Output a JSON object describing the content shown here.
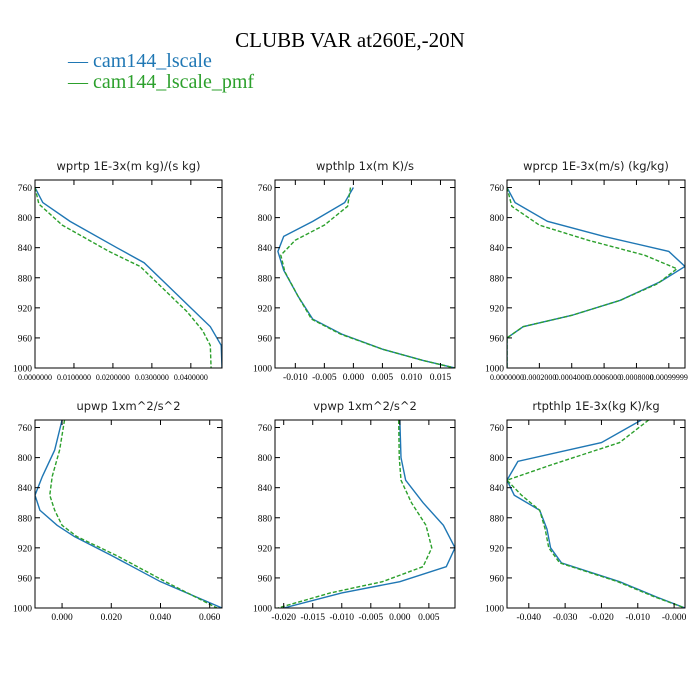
{
  "page": {
    "title": "CLUBB VAR at260E,-20N",
    "legend": [
      {
        "label": "— cam144_lscale",
        "color": "#1f77b4"
      },
      {
        "label": "— cam144_lscale_pmf",
        "color": "#2ca02c"
      }
    ]
  },
  "chart_data": [
    {
      "type": "line",
      "title": "wprtp 1E-3x(m kg)/(s kg)",
      "xlim": [
        0.0,
        0.048
      ],
      "ylim": [
        1000,
        750
      ],
      "xtick_values": [
        0.0,
        0.01,
        0.02,
        0.03,
        0.04
      ],
      "xtick_labels": [
        "0.0000000",
        "0.0100000",
        "0.0200000",
        "0.0300000",
        "0.0400000"
      ],
      "yticks": [
        760,
        800,
        840,
        880,
        920,
        960,
        1000
      ],
      "series": [
        {
          "name": "cam144_lscale",
          "color": "#1f77b4",
          "dashed": false,
          "points": [
            [
              0.0,
              760
            ],
            [
              0.002,
              780
            ],
            [
              0.009,
              805
            ],
            [
              0.021,
              840
            ],
            [
              0.028,
              860
            ],
            [
              0.034,
              890
            ],
            [
              0.04,
              920
            ],
            [
              0.045,
              945
            ],
            [
              0.0478,
              970
            ],
            [
              0.048,
              1000
            ]
          ]
        },
        {
          "name": "cam144_lscale_pmf",
          "color": "#2ca02c",
          "dashed": true,
          "points": [
            [
              0.0,
              760
            ],
            [
              0.001,
              782
            ],
            [
              0.007,
              810
            ],
            [
              0.019,
              845
            ],
            [
              0.027,
              865
            ],
            [
              0.033,
              895
            ],
            [
              0.039,
              925
            ],
            [
              0.043,
              950
            ],
            [
              0.045,
              970
            ],
            [
              0.0452,
              1000
            ]
          ]
        }
      ]
    },
    {
      "type": "line",
      "title": "wpthlp 1x(m K)/s",
      "xlim": [
        -0.0135,
        0.0175
      ],
      "ylim": [
        1000,
        750
      ],
      "xtick_values": [
        -0.01,
        -0.005,
        0.0,
        0.005,
        0.01,
        0.015
      ],
      "xtick_labels": [
        "-0.010",
        "-0.005",
        "0.000",
        "0.005",
        "0.010",
        "0.015"
      ],
      "yticks": [
        760,
        800,
        840,
        880,
        920,
        960,
        1000
      ],
      "series": [
        {
          "name": "cam144_lscale",
          "color": "#1f77b4",
          "dashed": false,
          "points": [
            [
              0.0,
              760
            ],
            [
              -0.0015,
              780
            ],
            [
              -0.007,
              805
            ],
            [
              -0.012,
              825
            ],
            [
              -0.013,
              845
            ],
            [
              -0.012,
              870
            ],
            [
              -0.0095,
              905
            ],
            [
              -0.007,
              935
            ],
            [
              -0.002,
              955
            ],
            [
              0.005,
              975
            ],
            [
              0.012,
              990
            ],
            [
              0.0175,
              1000
            ]
          ]
        },
        {
          "name": "cam144_lscale_pmf",
          "color": "#2ca02c",
          "dashed": true,
          "points": [
            [
              -0.0005,
              760
            ],
            [
              -0.001,
              785
            ],
            [
              -0.005,
              810
            ],
            [
              -0.01,
              830
            ],
            [
              -0.0125,
              850
            ],
            [
              -0.0118,
              872
            ],
            [
              -0.0095,
              905
            ],
            [
              -0.0072,
              935
            ],
            [
              -0.0022,
              955
            ],
            [
              0.005,
              975
            ],
            [
              0.012,
              990
            ],
            [
              0.0175,
              1000
            ]
          ]
        }
      ]
    },
    {
      "type": "line",
      "title": "wprcp 1E-3x(m/s) (kg/kg)",
      "xlim": [
        0.0,
        0.0011
      ],
      "ylim": [
        1000,
        750
      ],
      "xtick_values": [
        0.0,
        0.0002,
        0.0004,
        0.0006,
        0.0008,
        0.001
      ],
      "xtick_labels": [
        "0.0000000",
        "0.0002000",
        "0.0004000",
        "0.0006000",
        "0.0008000",
        "0.00099999"
      ],
      "yticks": [
        760,
        800,
        840,
        880,
        920,
        960,
        1000
      ],
      "series": [
        {
          "name": "cam144_lscale",
          "color": "#1f77b4",
          "dashed": false,
          "points": [
            [
              0.0,
              760
            ],
            [
              5e-05,
              780
            ],
            [
              0.00025,
              805
            ],
            [
              0.0006,
              825
            ],
            [
              0.001,
              845
            ],
            [
              0.0011,
              865
            ],
            [
              0.00095,
              885
            ],
            [
              0.0007,
              910
            ],
            [
              0.0004,
              930
            ],
            [
              0.0001,
              945
            ],
            [
              0.0,
              960
            ],
            [
              0.0,
              1000
            ]
          ]
        },
        {
          "name": "cam144_lscale_pmf",
          "color": "#2ca02c",
          "dashed": true,
          "points": [
            [
              0.0,
              760
            ],
            [
              3e-05,
              785
            ],
            [
              0.0002,
              810
            ],
            [
              0.0005,
              830
            ],
            [
              0.00085,
              850
            ],
            [
              0.00105,
              868
            ],
            [
              0.00093,
              888
            ],
            [
              0.0007,
              910
            ],
            [
              0.0004,
              930
            ],
            [
              0.0001,
              945
            ],
            [
              0.0,
              960
            ],
            [
              0.0,
              1000
            ]
          ]
        }
      ]
    },
    {
      "type": "line",
      "title": "upwp 1xm^2/s^2",
      "xlim": [
        -0.011,
        0.065
      ],
      "ylim": [
        1000,
        750
      ],
      "xtick_values": [
        0.0,
        0.02,
        0.04,
        0.06
      ],
      "xtick_labels": [
        "0.000",
        "0.020",
        "0.040",
        "0.060"
      ],
      "yticks": [
        760,
        800,
        840,
        880,
        920,
        960,
        1000
      ],
      "series": [
        {
          "name": "cam144_lscale",
          "color": "#1f77b4",
          "dashed": false,
          "points": [
            [
              0.0,
              750
            ],
            [
              -0.003,
              790
            ],
            [
              -0.008,
              825
            ],
            [
              -0.011,
              850
            ],
            [
              -0.009,
              870
            ],
            [
              -0.002,
              890
            ],
            [
              0.005,
              905
            ],
            [
              0.02,
              930
            ],
            [
              0.04,
              965
            ],
            [
              0.065,
              1000
            ]
          ]
        },
        {
          "name": "cam144_lscale_pmf",
          "color": "#2ca02c",
          "dashed": true,
          "points": [
            [
              0.001,
              750
            ],
            [
              -0.001,
              790
            ],
            [
              -0.004,
              825
            ],
            [
              -0.005,
              850
            ],
            [
              -0.003,
              870
            ],
            [
              0.0,
              890
            ],
            [
              0.006,
              905
            ],
            [
              0.022,
              930
            ],
            [
              0.042,
              965
            ],
            [
              0.063,
              1000
            ]
          ]
        }
      ]
    },
    {
      "type": "line",
      "title": "vpwp 1xm^2/s^2",
      "xlim": [
        -0.0215,
        0.0095
      ],
      "ylim": [
        1000,
        750
      ],
      "xtick_values": [
        -0.02,
        -0.015,
        -0.01,
        -0.005,
        0.0,
        0.005
      ],
      "xtick_labels": [
        "-0.020",
        "-0.015",
        "-0.010",
        "-0.005",
        "0.000",
        "0.005"
      ],
      "yticks": [
        760,
        800,
        840,
        880,
        920,
        960,
        1000
      ],
      "series": [
        {
          "name": "cam144_lscale",
          "color": "#1f77b4",
          "dashed": false,
          "points": [
            [
              0.0,
              750
            ],
            [
              0.0002,
              800
            ],
            [
              0.001,
              830
            ],
            [
              0.004,
              860
            ],
            [
              0.0075,
              890
            ],
            [
              0.0095,
              920
            ],
            [
              0.008,
              945
            ],
            [
              0.0,
              965
            ],
            [
              -0.01,
              980
            ],
            [
              -0.02,
              1000
            ]
          ]
        },
        {
          "name": "cam144_lscale_pmf",
          "color": "#2ca02c",
          "dashed": true,
          "points": [
            [
              -0.0002,
              750
            ],
            [
              -0.0001,
              800
            ],
            [
              0.0002,
              830
            ],
            [
              0.002,
              860
            ],
            [
              0.0045,
              890
            ],
            [
              0.0055,
              920
            ],
            [
              0.004,
              945
            ],
            [
              -0.003,
              965
            ],
            [
              -0.012,
              980
            ],
            [
              -0.021,
              1000
            ]
          ]
        }
      ]
    },
    {
      "type": "line",
      "title": "rtpthlp 1E-3x(kg K)/kg",
      "xlim": [
        -0.046,
        0.003
      ],
      "ylim": [
        1000,
        750
      ],
      "xtick_values": [
        -0.04,
        -0.03,
        -0.02,
        -0.01,
        0.0
      ],
      "xtick_labels": [
        "-0.040",
        "-0.030",
        "-0.020",
        "-0.010",
        "-0.000"
      ],
      "yticks": [
        760,
        800,
        840,
        880,
        920,
        960,
        1000
      ],
      "series": [
        {
          "name": "cam144_lscale",
          "color": "#1f77b4",
          "dashed": false,
          "points": [
            [
              -0.009,
              750
            ],
            [
              -0.02,
              780
            ],
            [
              -0.043,
              805
            ],
            [
              -0.046,
              830
            ],
            [
              -0.044,
              850
            ],
            [
              -0.037,
              870
            ],
            [
              -0.035,
              895
            ],
            [
              -0.034,
              920
            ],
            [
              -0.031,
              940
            ],
            [
              -0.015,
              965
            ],
            [
              -0.005,
              985
            ],
            [
              0.003,
              1000
            ]
          ]
        },
        {
          "name": "cam144_lscale_pmf",
          "color": "#2ca02c",
          "dashed": true,
          "points": [
            [
              -0.007,
              750
            ],
            [
              -0.015,
              780
            ],
            [
              -0.034,
              810
            ],
            [
              -0.046,
              830
            ],
            [
              -0.042,
              850
            ],
            [
              -0.037,
              870
            ],
            [
              -0.0355,
              895
            ],
            [
              -0.0345,
              920
            ],
            [
              -0.0315,
              940
            ],
            [
              -0.0155,
              965
            ],
            [
              -0.0055,
              985
            ],
            [
              0.003,
              1000
            ]
          ]
        }
      ]
    }
  ]
}
